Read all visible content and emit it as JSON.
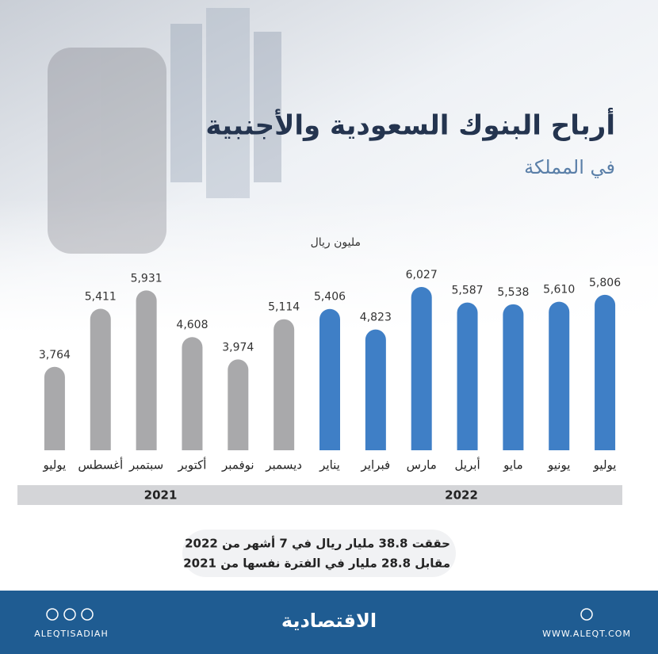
{
  "chart_data": {
    "type": "bar",
    "title": "أرباح البنوك السعودية والأجنبية",
    "subtitle": "في المملكة",
    "y_label": "مليون ريال",
    "categories": [
      "يوليو",
      "أغسطس",
      "سبتمبر",
      "أكتوبر",
      "نوفمبر",
      "ديسمبر",
      "يناير",
      "فبراير",
      "مارس",
      "أبريل",
      "مايو",
      "يونيو",
      "يوليو"
    ],
    "series": [
      {
        "name": "2021",
        "color": "#a9a9ab",
        "values": [
          3764,
          5411,
          5931,
          4608,
          3974,
          5114,
          null,
          null,
          null,
          null,
          null,
          null,
          null
        ],
        "value_labels": [
          "3,764",
          "5,411",
          "5,931",
          "4,608",
          "3,974",
          "5,114",
          null,
          null,
          null,
          null,
          null,
          null,
          null
        ]
      },
      {
        "name": "2022",
        "color": "#3f7fc6",
        "values": [
          null,
          null,
          null,
          null,
          null,
          null,
          5406,
          4823,
          6027,
          5587,
          5538,
          5610,
          5806
        ],
        "value_labels": [
          null,
          null,
          null,
          null,
          null,
          null,
          "5,406",
          "4,823",
          "6,027",
          "5,587",
          "5,538",
          "5,610",
          "5,806"
        ]
      }
    ],
    "ylim": [
      1400,
      6500
    ],
    "annotations": [
      "حققت 38.8 مليار ريال في 7 أشهر من 2022",
      "مقابل 28.8 مليار في الفترة نفسها من 2021"
    ]
  },
  "footer": {
    "logo": "الاقتصادية",
    "handle": "ALEQTISADIAH",
    "website": "WWW.ALEQT.COM"
  }
}
